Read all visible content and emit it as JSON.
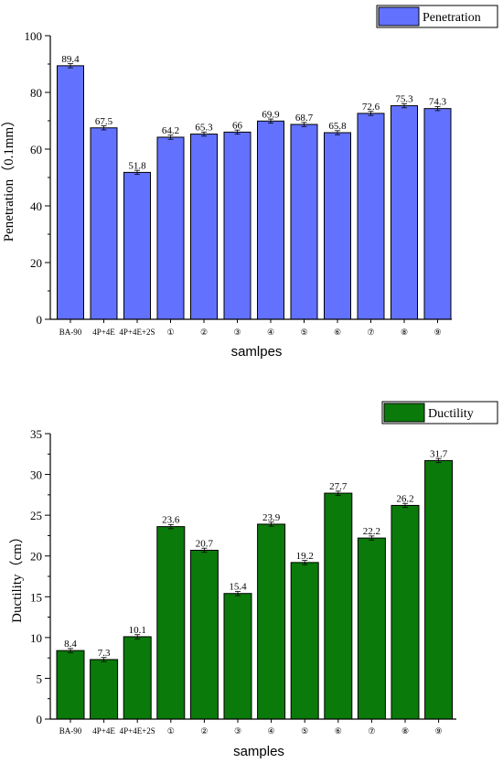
{
  "chart_data": [
    {
      "type": "bar",
      "color": "#6272ff",
      "categories": [
        "BA-90",
        "4P+4E",
        "4P+4E+2S",
        "①",
        "②",
        "③",
        "④",
        "⑤",
        "⑥",
        "⑦",
        "⑧",
        "⑨"
      ],
      "series": [
        {
          "name": "Penetration",
          "values": [
            89.4,
            67.5,
            51.8,
            64.2,
            65.3,
            66,
            69.9,
            68.7,
            65.8,
            72.6,
            75.3,
            74.3
          ]
        }
      ],
      "value_labels": [
        "89.4",
        "67.5",
        "51.8",
        "64.2",
        "65.3",
        "66",
        "69.9",
        "68.7",
        "65.8",
        "72.6",
        "75.3",
        "74.3"
      ],
      "xlabel": "samlpes",
      "ylabel": "Penetration（0.1mm）",
      "ylim": [
        0,
        100
      ],
      "yticks": [
        0,
        20,
        40,
        60,
        80,
        100
      ],
      "error_bars": true,
      "legend": "top-right"
    },
    {
      "type": "bar",
      "color": "#0a7a0a",
      "categories": [
        "BA-90",
        "4P+4E",
        "4P+4E+2S",
        "①",
        "②",
        "③",
        "④",
        "⑤",
        "⑥",
        "⑦",
        "⑧",
        "⑨"
      ],
      "series": [
        {
          "name": "Ductility",
          "values": [
            8.4,
            7.3,
            10.1,
            23.6,
            20.7,
            15.4,
            23.9,
            19.2,
            27.7,
            22.2,
            26.2,
            31.7
          ]
        }
      ],
      "value_labels": [
        "8.4",
        "7.3",
        "10.1",
        "23.6",
        "20.7",
        "15.4",
        "23.9",
        "19.2",
        "27.7",
        "22.2",
        "26.2",
        "31.7"
      ],
      "xlabel": "samples",
      "ylabel": "Ductility（cm）",
      "ylim": [
        0,
        35
      ],
      "yticks": [
        0,
        5,
        10,
        15,
        20,
        25,
        30,
        35
      ],
      "error_bars": true,
      "legend": "top-right"
    }
  ]
}
